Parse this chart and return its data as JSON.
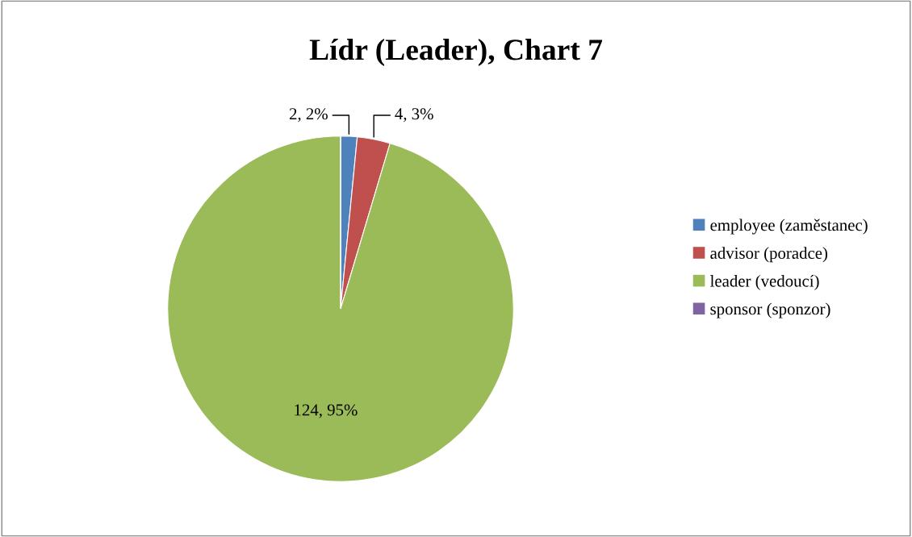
{
  "chart_data": {
    "type": "pie",
    "title": "Lídr (Leader), Chart 7",
    "categories": [
      "employee (zaměstanec)",
      "advisor (poradce)",
      "leader (vedoucí)",
      "sponsor (sponzor)"
    ],
    "values": [
      2,
      4,
      124,
      0
    ],
    "value_labels": [
      "2, 2%",
      "4, 3%",
      "124, 95%",
      null
    ],
    "colors": [
      "#4f81bd",
      "#c0504d",
      "#9bbb59",
      "#8064a2"
    ],
    "legend": "right"
  }
}
